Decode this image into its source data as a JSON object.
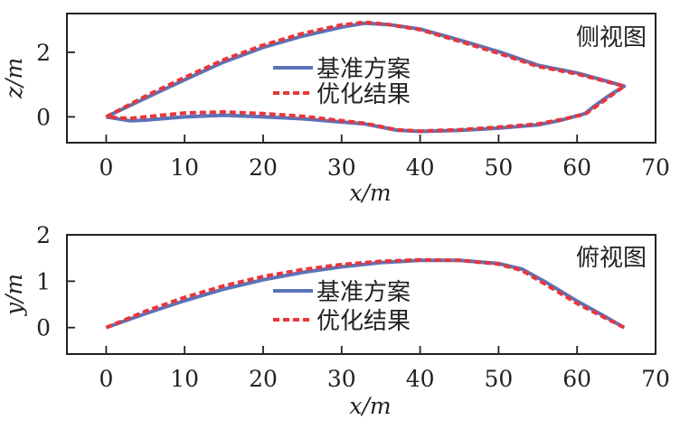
{
  "chart_data": [
    {
      "type": "line",
      "title": "侧视图",
      "xlabel": "x/m",
      "ylabel": "z/m",
      "xlim": [
        -5,
        70
      ],
      "ylim": [
        -0.8,
        3.2
      ],
      "xticks": [
        0,
        10,
        20,
        30,
        40,
        50,
        60,
        70
      ],
      "yticks": [
        0,
        2
      ],
      "legend_position": "center",
      "series": [
        {
          "name": "基准方案",
          "color": "#5b73b8",
          "style": "solid",
          "x": [
            0,
            5,
            10,
            15,
            20,
            25,
            30,
            33,
            36,
            40,
            45,
            50,
            55,
            60,
            63,
            66,
            64,
            62,
            61,
            58,
            55,
            50,
            45,
            40,
            37,
            33,
            25,
            20,
            15,
            10,
            5,
            3,
            0
          ],
          "y": [
            0,
            0.58,
            1.15,
            1.7,
            2.15,
            2.5,
            2.78,
            2.9,
            2.86,
            2.72,
            2.38,
            2.02,
            1.6,
            1.36,
            1.16,
            0.95,
            0.65,
            0.3,
            0.1,
            -0.1,
            -0.25,
            -0.35,
            -0.42,
            -0.45,
            -0.41,
            -0.22,
            -0.06,
            0,
            0.05,
            0,
            -0.1,
            -0.12,
            0
          ]
        },
        {
          "name": "优化结果",
          "color": "#e8363a",
          "style": "dashed",
          "x": [
            0,
            5,
            10,
            15,
            20,
            25,
            30,
            33,
            36,
            40,
            45,
            50,
            55,
            60,
            63,
            66,
            64,
            62,
            61,
            58,
            55,
            50,
            45,
            40,
            37,
            33,
            25,
            20,
            15,
            10,
            5,
            3,
            0
          ],
          "y": [
            0,
            0.64,
            1.22,
            1.77,
            2.22,
            2.58,
            2.85,
            2.93,
            2.86,
            2.7,
            2.34,
            1.97,
            1.56,
            1.33,
            1.14,
            0.95,
            0.6,
            0.25,
            0.08,
            -0.08,
            -0.22,
            -0.32,
            -0.4,
            -0.44,
            -0.4,
            -0.2,
            0.02,
            0.1,
            0.15,
            0.12,
            0,
            -0.05,
            0
          ]
        }
      ]
    },
    {
      "type": "line",
      "title": "俯视图",
      "xlabel": "x/m",
      "ylabel": "y/m",
      "xlim": [
        -5,
        70
      ],
      "ylim": [
        -0.57,
        2
      ],
      "xticks": [
        0,
        10,
        20,
        30,
        40,
        50,
        60,
        70
      ],
      "yticks": [
        0,
        1,
        2
      ],
      "legend_position": "center",
      "series": [
        {
          "name": "基准方案",
          "color": "#5b73b8",
          "style": "solid",
          "x": [
            0,
            5,
            10,
            15,
            20,
            25,
            30,
            35,
            40,
            45,
            50,
            53,
            56,
            60,
            63,
            66
          ],
          "y": [
            0,
            0.3,
            0.58,
            0.83,
            1.03,
            1.19,
            1.31,
            1.4,
            1.45,
            1.45,
            1.38,
            1.26,
            0.98,
            0.57,
            0.29,
            0
          ]
        },
        {
          "name": "优化结果",
          "color": "#e8363a",
          "style": "dashed",
          "x": [
            0,
            5,
            10,
            15,
            20,
            25,
            30,
            35,
            40,
            45,
            50,
            53,
            56,
            60,
            63,
            66
          ],
          "y": [
            0,
            0.35,
            0.65,
            0.9,
            1.1,
            1.25,
            1.36,
            1.43,
            1.46,
            1.45,
            1.37,
            1.23,
            0.93,
            0.52,
            0.26,
            0
          ]
        }
      ]
    }
  ]
}
